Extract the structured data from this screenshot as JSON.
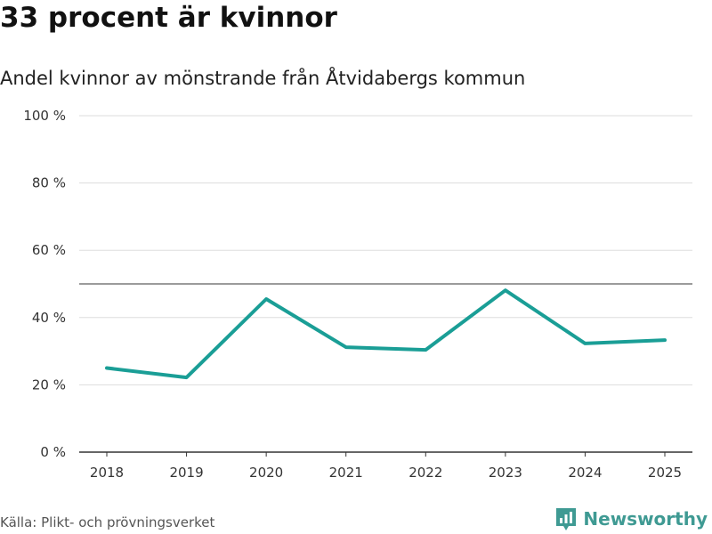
{
  "headline": "33 procent är kvinnor",
  "chart_data": {
    "type": "line",
    "title": "Andel kvinnor av mönstrande från Åtvidabergs kommun",
    "xlabel": "",
    "ylabel": "",
    "categories": [
      "2018",
      "2019",
      "2020",
      "2021",
      "2022",
      "2023",
      "2024",
      "2025"
    ],
    "series": [
      {
        "name": "Andel kvinnor",
        "values": [
          25,
          22.2,
          45.5,
          31.2,
          30.4,
          48.1,
          32.3,
          33.3
        ]
      }
    ],
    "reference_line": 50,
    "ylim": [
      0,
      100
    ],
    "yticks": [
      0,
      20,
      40,
      60,
      80,
      100
    ],
    "ytick_labels": [
      "0 %",
      "20 %",
      "40 %",
      "60 %",
      "80 %",
      "100 %"
    ],
    "grid": true,
    "colors": {
      "line": "#1a9e96",
      "grid": "#dddddd",
      "reference": "#7a7a7a",
      "axis": "#333333"
    }
  },
  "footer": {
    "source": "Källa: Plikt- och prövningsverket",
    "brand": "Newsworthy",
    "brand_icon": "bar-chart-logo-icon",
    "brand_color": "#3f9a93"
  }
}
